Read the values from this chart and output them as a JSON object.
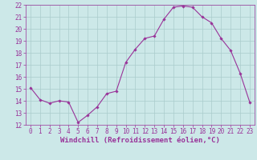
{
  "x": [
    0,
    1,
    2,
    3,
    4,
    5,
    6,
    7,
    8,
    9,
    10,
    11,
    12,
    13,
    14,
    15,
    16,
    17,
    18,
    19,
    20,
    21,
    22,
    23
  ],
  "y": [
    15.1,
    14.1,
    13.8,
    14.0,
    13.9,
    12.2,
    12.8,
    13.5,
    14.6,
    14.8,
    17.2,
    18.3,
    19.2,
    19.4,
    20.8,
    21.8,
    21.9,
    21.8,
    21.0,
    20.5,
    19.2,
    18.2,
    16.3,
    13.9
  ],
  "line_color": "#993399",
  "marker": "D",
  "marker_size": 1.8,
  "bg_color": "#cce8e8",
  "grid_color": "#aacccc",
  "xlabel": "Windchill (Refroidissement éolien,°C)",
  "xlabel_fontsize": 6.5,
  "ylim": [
    12,
    22
  ],
  "xlim_min": -0.5,
  "xlim_max": 23.5,
  "yticks": [
    12,
    13,
    14,
    15,
    16,
    17,
    18,
    19,
    20,
    21,
    22
  ],
  "xticks": [
    0,
    1,
    2,
    3,
    4,
    5,
    6,
    7,
    8,
    9,
    10,
    11,
    12,
    13,
    14,
    15,
    16,
    17,
    18,
    19,
    20,
    21,
    22,
    23
  ],
  "tick_fontsize": 5.5,
  "tick_color": "#993399",
  "axis_color": "#993399",
  "linewidth": 0.8
}
